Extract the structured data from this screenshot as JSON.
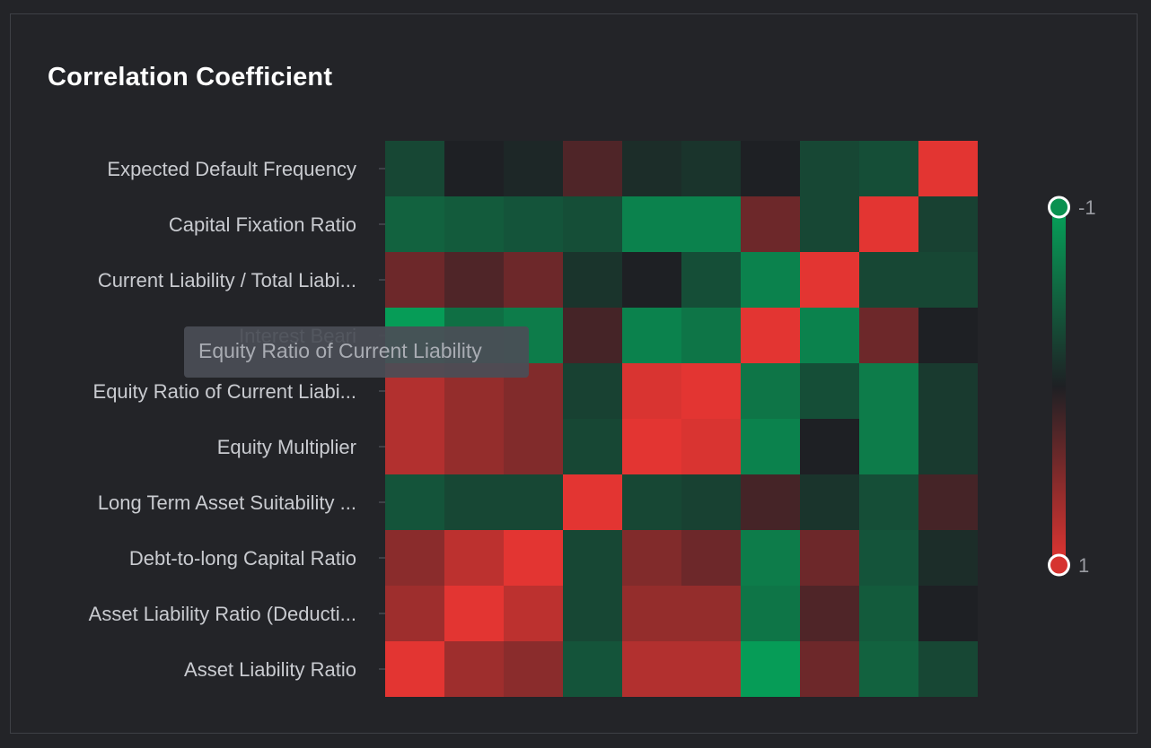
{
  "panel": {
    "title": "Correlation Coefficient"
  },
  "tooltip": {
    "text": "Equity Ratio of Current Liability"
  },
  "colors": {
    "background": "#232428",
    "negative": "#05a35a",
    "neutral": "#1e2024",
    "positive": "#e33532"
  },
  "chart_data": {
    "type": "heatmap",
    "title": "Correlation Coefficient",
    "y_labels_display": [
      "Expected Default Frequency",
      "Capital Fixation Ratio",
      "Current Liability / Total Liabi...",
      "Interest Beari",
      "Equity Ratio of Current Liabi...",
      "Equity Multiplier",
      "Long Term Asset Suitability ...",
      "Debt-to-long Capital Ratio",
      "Asset Liability Ratio (Deducti...",
      "Asset Liability Ratio"
    ],
    "x_labels": [],
    "values": [
      [
        -0.3,
        0.0,
        -0.05,
        0.25,
        -0.1,
        -0.15,
        0.0,
        -0.3,
        -0.35,
        1.0
      ],
      [
        -0.5,
        -0.45,
        -0.4,
        -0.35,
        -0.75,
        -0.75,
        0.4,
        -0.3,
        1.0,
        -0.25
      ],
      [
        0.4,
        0.25,
        0.4,
        -0.15,
        0.0,
        -0.35,
        -0.75,
        1.0,
        -0.3,
        -0.3
      ],
      [
        -0.95,
        -0.6,
        -0.7,
        0.2,
        -0.75,
        -0.65,
        1.0,
        -0.75,
        0.4,
        0.0
      ],
      [
        0.75,
        0.6,
        0.5,
        -0.25,
        0.95,
        1.0,
        -0.65,
        -0.35,
        -0.7,
        -0.2
      ],
      [
        0.75,
        0.6,
        0.5,
        -0.3,
        1.0,
        0.95,
        -0.75,
        0.0,
        -0.7,
        -0.2
      ],
      [
        -0.4,
        -0.3,
        -0.3,
        1.0,
        -0.3,
        -0.25,
        0.2,
        -0.15,
        -0.35,
        0.2
      ],
      [
        0.55,
        0.8,
        1.0,
        -0.3,
        0.5,
        0.4,
        -0.7,
        0.4,
        -0.4,
        -0.1
      ],
      [
        0.65,
        1.0,
        0.8,
        -0.3,
        0.6,
        0.6,
        -0.65,
        0.25,
        -0.45,
        0.0
      ],
      [
        1.0,
        0.65,
        0.55,
        -0.4,
        0.75,
        0.75,
        -0.95,
        0.4,
        -0.5,
        -0.3
      ]
    ],
    "visual_map": {
      "min": -1,
      "max": 1,
      "min_label": "-1",
      "max_label": "1"
    }
  }
}
